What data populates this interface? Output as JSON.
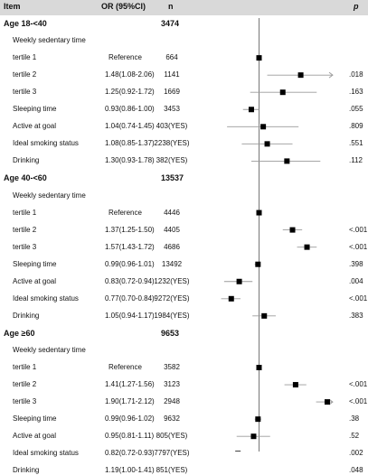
{
  "header": {
    "item": "Item",
    "or": "OR (95%CI)",
    "n": "n",
    "p": "p"
  },
  "groups": [
    {
      "label": "Age 18-<40",
      "n": "3474",
      "sub": "Weekly sedentary time",
      "rows": [
        {
          "label": "tertile 1",
          "or": "Reference",
          "n": "664",
          "p": "",
          "est": 1.0,
          "lo": 1.0,
          "hi": 1.0
        },
        {
          "label": "tertile 2",
          "or": "1.48(1.08-2.06)",
          "n": "1141",
          "p": ".018",
          "est": 1.48,
          "lo": 1.08,
          "hi": 2.06
        },
        {
          "label": "tertile 3",
          "or": "1.25(0.92-1.72)",
          "n": "1669",
          "p": ".163",
          "est": 1.25,
          "lo": 0.92,
          "hi": 1.72
        }
      ],
      "extra": [
        {
          "label": "Sleeping time",
          "or": "0.93(0.86-1.00)",
          "n": "3453",
          "p": ".055",
          "est": 0.93,
          "lo": 0.86,
          "hi": 1.0
        },
        {
          "label": "Active at goal",
          "or": "1.04(0.74-1.45)",
          "n": "403(YES)",
          "p": ".809",
          "est": 1.04,
          "lo": 0.74,
          "hi": 1.45
        },
        {
          "label": "Ideal smoking status",
          "or": "1.08(0.85-1.37)",
          "n": "2238(YES)",
          "p": ".551",
          "est": 1.08,
          "lo": 0.85,
          "hi": 1.37
        },
        {
          "label": "Drinking",
          "or": "1.30(0.93-1.78)",
          "n": "382(YES)",
          "p": ".112",
          "est": 1.3,
          "lo": 0.93,
          "hi": 1.78
        }
      ]
    },
    {
      "label": "Age 40-<60",
      "n": "13537",
      "sub": "Weekly sedentary time",
      "rows": [
        {
          "label": "tertile 1",
          "or": "Reference",
          "n": "4446",
          "p": "",
          "est": 1.0,
          "lo": 1.0,
          "hi": 1.0
        },
        {
          "label": "tertile 2",
          "or": "1.37(1.25-1.50)",
          "n": "4405",
          "p": "<.001",
          "est": 1.37,
          "lo": 1.25,
          "hi": 1.5
        },
        {
          "label": "tertile 3",
          "or": "1.57(1.43-1.72)",
          "n": "4686",
          "p": "<.001",
          "est": 1.57,
          "lo": 1.43,
          "hi": 1.72
        }
      ],
      "extra": [
        {
          "label": "Sleeping time",
          "or": "0.99(0.96-1.01)",
          "n": "13492",
          "p": ".398",
          "est": 0.99,
          "lo": 0.96,
          "hi": 1.01
        },
        {
          "label": "Active at goal",
          "or": "0.83(0.72-0.94)",
          "n": "1232(YES)",
          "p": ".004",
          "est": 0.83,
          "lo": 0.72,
          "hi": 0.94
        },
        {
          "label": "Ideal smoking status",
          "or": "0.77(0.70-0.84)",
          "n": "9272(YES)",
          "p": "<.001",
          "est": 0.77,
          "lo": 0.7,
          "hi": 0.84
        },
        {
          "label": "Drinking",
          "or": "1.05(0.94-1.17)",
          "n": "1984(YES)",
          "p": ".383",
          "est": 1.05,
          "lo": 0.94,
          "hi": 1.17
        }
      ]
    },
    {
      "label": "Age ≥60",
      "n": "9653",
      "sub": "Weekly sedentary time",
      "rows": [
        {
          "label": "tertile 1",
          "or": "Reference",
          "n": "3582",
          "p": "",
          "est": 1.0,
          "lo": 1.0,
          "hi": 1.0
        },
        {
          "label": "tertile 2",
          "or": "1.41(1.27-1.56)",
          "n": "3123",
          "p": "<.001",
          "est": 1.41,
          "lo": 1.27,
          "hi": 1.56
        },
        {
          "label": "tertile 3",
          "or": "1.90(1.71-2.12)",
          "n": "2948",
          "p": "<.001",
          "est": 1.9,
          "lo": 1.71,
          "hi": 2.12
        }
      ],
      "extra": [
        {
          "label": "Sleeping time",
          "or": "0.99(0.96-1.02)",
          "n": "9632",
          "p": ".38",
          "est": 0.99,
          "lo": 0.96,
          "hi": 1.02
        },
        {
          "label": "Active at goal",
          "or": "0.95(0.81-1.11)",
          "n": "805(YES)",
          "p": ".52",
          "est": 0.95,
          "lo": 0.81,
          "hi": 1.11
        },
        {
          "label": "Ideal smoking status",
          "or": "0.82(0.72-0.93)",
          "n": "7797(YES)",
          "p": ".002",
          "est": 0.82,
          "lo": 0.72,
          "hi": 0.93
        },
        {
          "label": "Drinking",
          "or": "1.19(1.00-1.41)",
          "n": "851(YES)",
          "p": ".048",
          "est": 1.19,
          "lo": 1.0,
          "hi": 1.41
        }
      ]
    }
  ],
  "chart_data": {
    "type": "forest",
    "scale": "log",
    "xlim": [
      0.5,
      2
    ],
    "reference_line": 1,
    "ticks": [
      {
        "value": 0.5,
        "label": "0.5"
      },
      {
        "value": 0.7,
        "label": "0.7"
      },
      {
        "value": 1,
        "label": "1"
      },
      {
        "value": 1.5,
        "label": "1.5"
      },
      {
        "value": 2,
        "label": "2"
      }
    ],
    "clipped_arrow_rows": [
      "Age 18-<40 tertile 2",
      "Age ≥60 tertile 3"
    ]
  }
}
